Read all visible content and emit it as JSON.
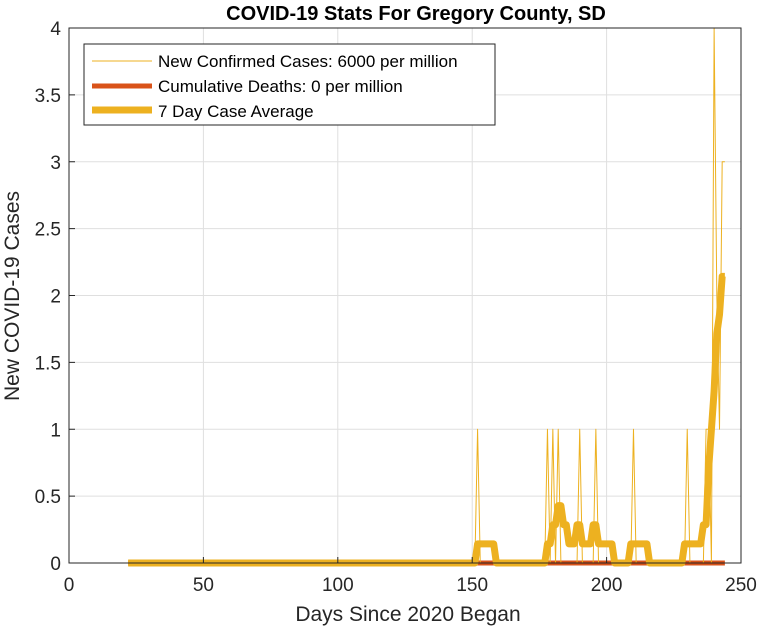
{
  "chart_data": {
    "type": "line",
    "title": "COVID-19 Stats For Gregory County, SD",
    "xlabel": "Days Since 2020 Began",
    "ylabel": "New COVID-19 Cases",
    "xlim": [
      0,
      250
    ],
    "ylim": [
      0,
      4
    ],
    "xticks": [
      "0",
      "50",
      "100",
      "150",
      "200",
      "250"
    ],
    "yticks": [
      "0",
      "0.5",
      "1",
      "1.5",
      "2",
      "2.5",
      "3",
      "3.5",
      "4"
    ],
    "grid": true,
    "legend_position": "top-left",
    "series": [
      {
        "name": "New Confirmed Cases: 6000 per million",
        "color": "#EDB120",
        "style": "thin",
        "x": [
          22,
          151,
          152,
          153,
          177,
          178,
          179,
          180,
          181,
          182,
          183,
          184,
          189,
          190,
          191,
          195,
          196,
          197,
          209,
          210,
          211,
          229,
          230,
          231,
          236,
          237,
          238,
          239,
          240,
          241,
          242,
          243,
          244
        ],
        "y": [
          0,
          0,
          1,
          0,
          0,
          1,
          0,
          1,
          0,
          1,
          0,
          0,
          0,
          1,
          0,
          0,
          1,
          0,
          0,
          1,
          0,
          0,
          1,
          0,
          0,
          1,
          1,
          0,
          4,
          2,
          1,
          3,
          3
        ]
      },
      {
        "name": "Cumulative Deaths: 0 per million",
        "color": "#D95319",
        "style": "medium",
        "x": [
          22,
          244
        ],
        "y": [
          0,
          0
        ]
      },
      {
        "name": "7 Day Case Average",
        "color": "#EDB120",
        "style": "thick",
        "x": [
          22,
          151,
          152,
          158,
          159,
          177,
          178,
          179,
          180,
          181,
          182,
          183,
          184,
          185,
          186,
          188,
          189,
          190,
          191,
          194,
          195,
          196,
          197,
          198,
          202,
          203,
          204,
          208,
          209,
          215,
          216,
          228,
          229,
          235,
          236,
          237,
          238,
          239,
          240,
          241,
          242,
          243,
          244
        ],
        "y": [
          0,
          0,
          0.143,
          0.143,
          0,
          0,
          0.143,
          0.143,
          0.286,
          0.286,
          0.429,
          0.429,
          0.286,
          0.286,
          0.143,
          0.143,
          0.286,
          0.286,
          0.143,
          0.143,
          0.286,
          0.286,
          0.143,
          0.143,
          0.143,
          0,
          0,
          0,
          0.143,
          0.143,
          0,
          0,
          0.143,
          0.143,
          0.286,
          0.286,
          0.714,
          1.0,
          1.286,
          1.714,
          1.857,
          2.143,
          2.143
        ]
      }
    ]
  }
}
